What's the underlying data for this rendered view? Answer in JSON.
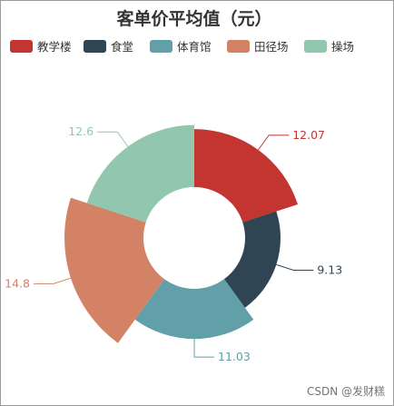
{
  "chart_data": {
    "type": "pie",
    "variant": "rose-donut",
    "title": "客单价平均值（元）",
    "categories": [
      "教学楼",
      "食堂",
      "体育馆",
      "田径场",
      "操场"
    ],
    "values": [
      12.07,
      9.13,
      11.03,
      14.8,
      12.6
    ],
    "value_labels": [
      "12.07",
      "9.13",
      "11.03",
      "14.8",
      "12.6"
    ],
    "colors": [
      "#c23531",
      "#2f4554",
      "#61a0a8",
      "#d48265",
      "#91c7ae"
    ],
    "legend_placement": "top-center"
  },
  "watermark": "CSDN @发财糕"
}
